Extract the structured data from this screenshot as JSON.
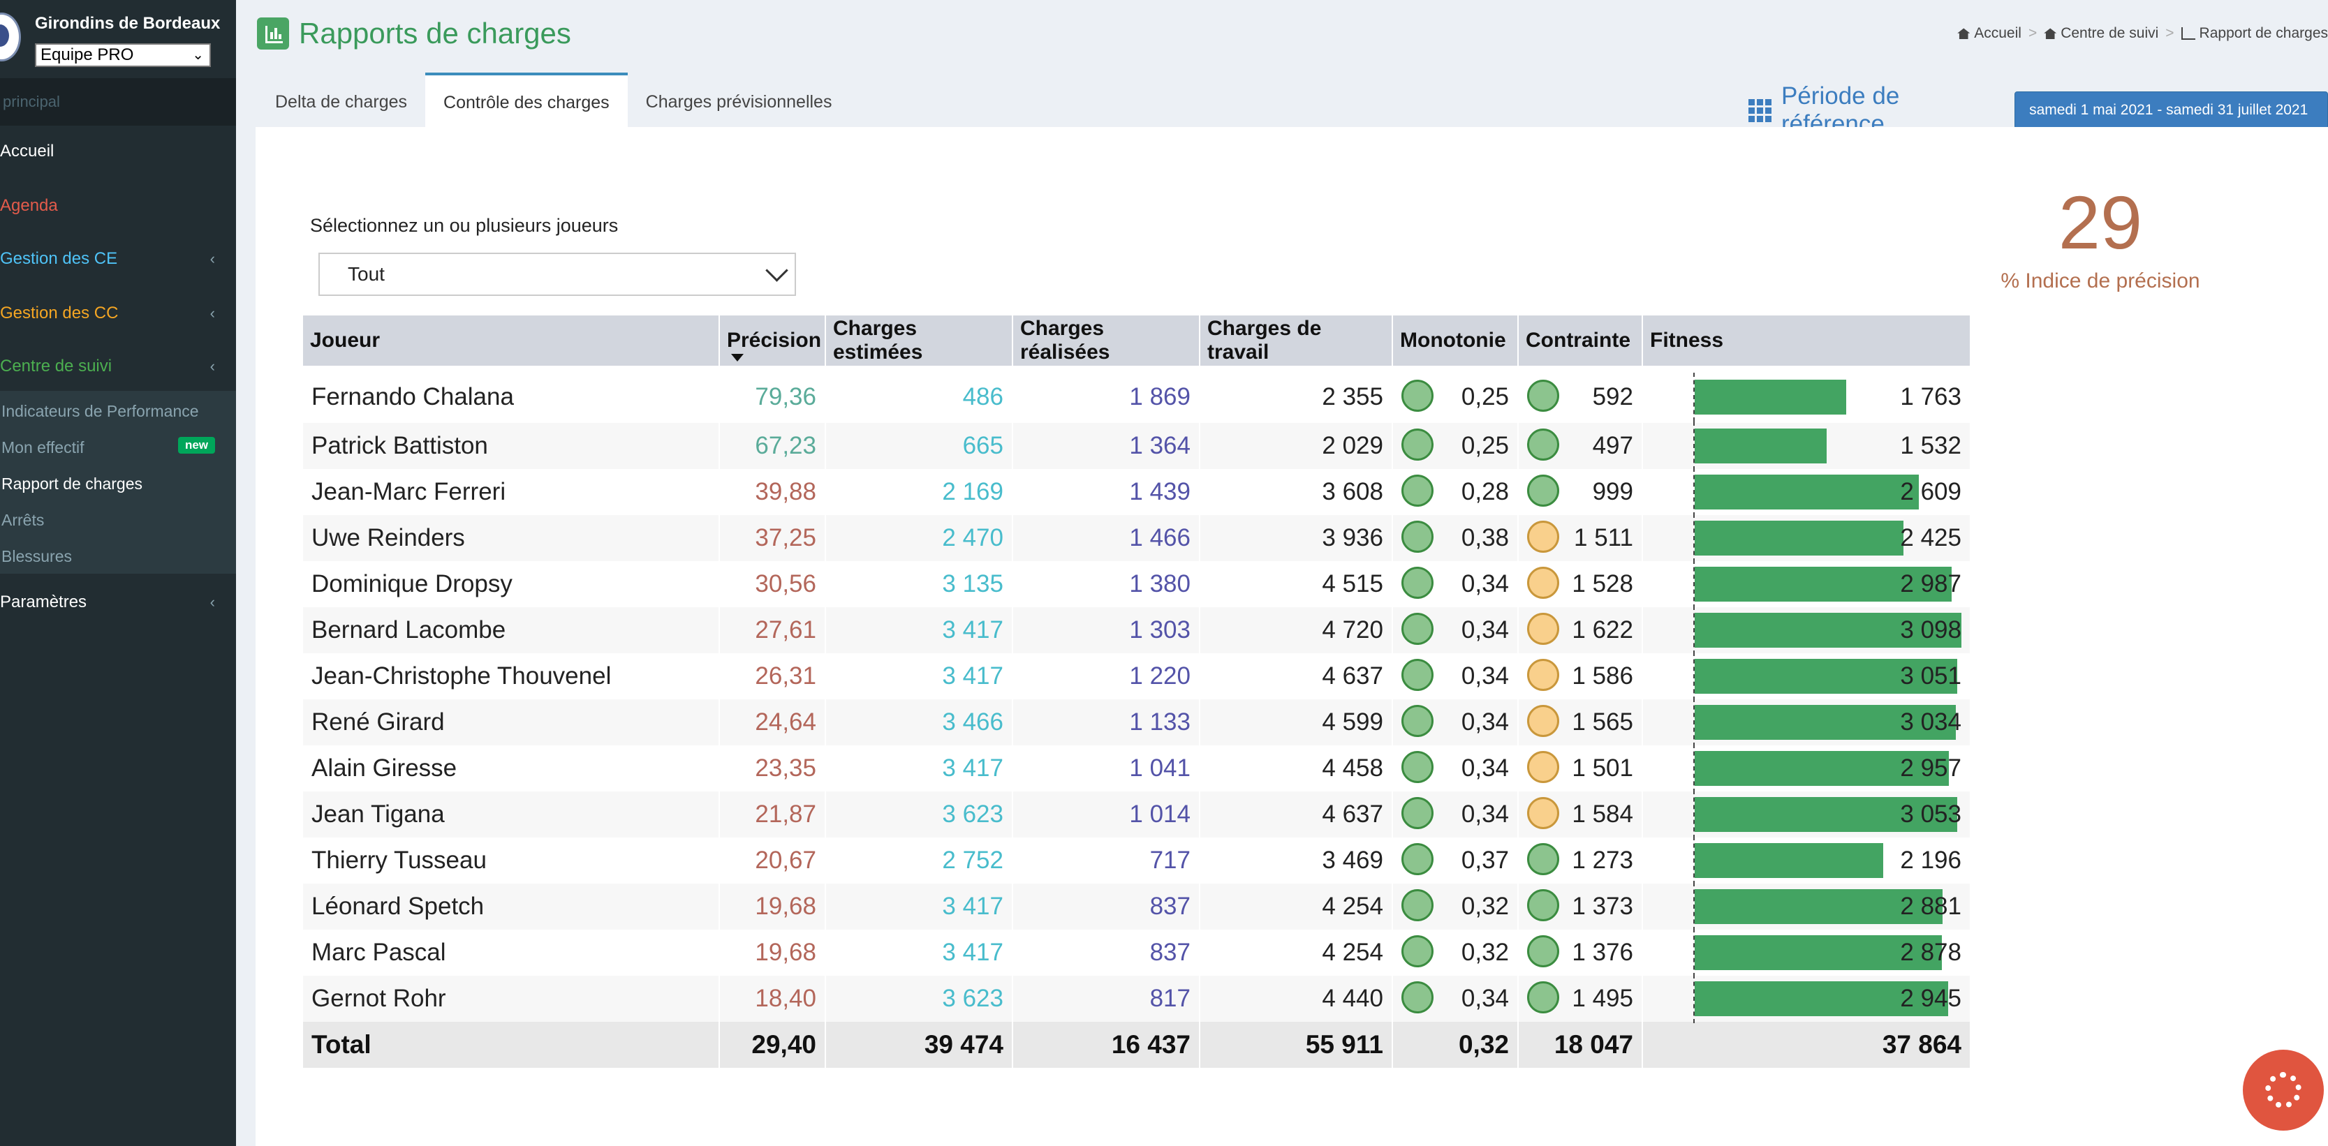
{
  "sidebar": {
    "club_name": "Girondins de Bordeaux",
    "team_selected": "Equipe PRO",
    "section_header": "principal",
    "items": [
      {
        "label": "Accueil",
        "color": "#ffffff"
      },
      {
        "label": "Agenda",
        "color": "#e35b4b"
      },
      {
        "label": "Gestion des CE",
        "color": "#4fc3f7"
      },
      {
        "label": "Gestion des CC",
        "color": "#f5a623"
      },
      {
        "label": "Centre de suivi",
        "color": "#4caf50"
      },
      {
        "label": "Paramètres",
        "color": "#ffffff"
      }
    ],
    "submenu": [
      {
        "label": "Indicateurs de Performance"
      },
      {
        "label": "Mon effectif",
        "badge": "new"
      },
      {
        "label": "Rapport de charges"
      },
      {
        "label": "Arrêts"
      },
      {
        "label": "Blessures"
      }
    ]
  },
  "header": {
    "title": "Rapports de charges",
    "breadcrumb": [
      "Accueil",
      "Centre de suivi",
      "Rapport de charges"
    ]
  },
  "tabs": [
    "Delta de charges",
    "Contrôle des charges",
    "Charges prévisionnelles"
  ],
  "period": {
    "label": "Période de référence",
    "value": "samedi 1 mai 2021 - samedi 31 juillet 2021"
  },
  "filter": {
    "label": "Sélectionnez un ou plusieurs joueurs",
    "value": "Tout"
  },
  "kpi": {
    "value": "29",
    "label": "% Indice de précision"
  },
  "table": {
    "columns": [
      "Joueur",
      "Précision",
      "Charges estimées",
      "Charges réalisées",
      "Charges de travail",
      "Monotonie",
      "Contrainte",
      "Fitness"
    ],
    "rows": [
      {
        "name": "Fernando Chalana",
        "precision": "79,36",
        "estimated": "486",
        "realized": "1 869",
        "workload": "2 355",
        "monotony": "0,25",
        "monotony_status": "green",
        "strain": "592",
        "strain_status": "green",
        "fitness": "1 763",
        "fitness_value": 1763
      },
      {
        "name": "Patrick Battiston",
        "precision": "67,23",
        "estimated": "665",
        "realized": "1 364",
        "workload": "2 029",
        "monotony": "0,25",
        "monotony_status": "green",
        "strain": "497",
        "strain_status": "green",
        "fitness": "1 532",
        "fitness_value": 1532
      },
      {
        "name": "Jean-Marc Ferreri",
        "precision": "39,88",
        "estimated": "2 169",
        "realized": "1 439",
        "workload": "3 608",
        "monotony": "0,28",
        "monotony_status": "green",
        "strain": "999",
        "strain_status": "green",
        "fitness": "2 609",
        "fitness_value": 2609
      },
      {
        "name": "Uwe Reinders",
        "precision": "37,25",
        "estimated": "2 470",
        "realized": "1 466",
        "workload": "3 936",
        "monotony": "0,38",
        "monotony_status": "green",
        "strain": "1 511",
        "strain_status": "orange",
        "fitness": "2 425",
        "fitness_value": 2425
      },
      {
        "name": "Dominique Dropsy",
        "precision": "30,56",
        "estimated": "3 135",
        "realized": "1 380",
        "workload": "4 515",
        "monotony": "0,34",
        "monotony_status": "green",
        "strain": "1 528",
        "strain_status": "orange",
        "fitness": "2 987",
        "fitness_value": 2987
      },
      {
        "name": "Bernard Lacombe",
        "precision": "27,61",
        "estimated": "3 417",
        "realized": "1 303",
        "workload": "4 720",
        "monotony": "0,34",
        "monotony_status": "green",
        "strain": "1 622",
        "strain_status": "orange",
        "fitness": "3 098",
        "fitness_value": 3098
      },
      {
        "name": "Jean-Christophe Thouvenel",
        "precision": "26,31",
        "estimated": "3 417",
        "realized": "1 220",
        "workload": "4 637",
        "monotony": "0,34",
        "monotony_status": "green",
        "strain": "1 586",
        "strain_status": "orange",
        "fitness": "3 051",
        "fitness_value": 3051
      },
      {
        "name": "René Girard",
        "precision": "24,64",
        "estimated": "3 466",
        "realized": "1 133",
        "workload": "4 599",
        "monotony": "0,34",
        "monotony_status": "green",
        "strain": "1 565",
        "strain_status": "orange",
        "fitness": "3 034",
        "fitness_value": 3034
      },
      {
        "name": "Alain Giresse",
        "precision": "23,35",
        "estimated": "3 417",
        "realized": "1 041",
        "workload": "4 458",
        "monotony": "0,34",
        "monotony_status": "green",
        "strain": "1 501",
        "strain_status": "orange",
        "fitness": "2 957",
        "fitness_value": 2957
      },
      {
        "name": "Jean Tigana",
        "precision": "21,87",
        "estimated": "3 623",
        "realized": "1 014",
        "workload": "4 637",
        "monotony": "0,34",
        "monotony_status": "green",
        "strain": "1 584",
        "strain_status": "orange",
        "fitness": "3 053",
        "fitness_value": 3053
      },
      {
        "name": "Thierry Tusseau",
        "precision": "20,67",
        "estimated": "2 752",
        "realized": "717",
        "workload": "3 469",
        "monotony": "0,37",
        "monotony_status": "green",
        "strain": "1 273",
        "strain_status": "green",
        "fitness": "2 196",
        "fitness_value": 2196
      },
      {
        "name": "Léonard Spetch",
        "precision": "19,68",
        "estimated": "3 417",
        "realized": "837",
        "workload": "4 254",
        "monotony": "0,32",
        "monotony_status": "green",
        "strain": "1 373",
        "strain_status": "green",
        "fitness": "2 881",
        "fitness_value": 2881
      },
      {
        "name": "Marc Pascal",
        "precision": "19,68",
        "estimated": "3 417",
        "realized": "837",
        "workload": "4 254",
        "monotony": "0,32",
        "monotony_status": "green",
        "strain": "1 376",
        "strain_status": "green",
        "fitness": "2 878",
        "fitness_value": 2878
      },
      {
        "name": "Gernot Rohr",
        "precision": "18,40",
        "estimated": "3 623",
        "realized": "817",
        "workload": "4 440",
        "monotony": "0,34",
        "monotony_status": "green",
        "strain": "1 495",
        "strain_status": "green",
        "fitness": "2 945",
        "fitness_value": 2945
      }
    ],
    "total": {
      "label": "Total",
      "precision": "29,40",
      "estimated": "39 474",
      "realized": "16 437",
      "workload": "55 911",
      "monotony": "0,32",
      "strain": "18 047",
      "fitness": "37 864"
    }
  },
  "colors": {
    "accent": "#3c7dbf",
    "title_green": "#3a9a5b",
    "fitness_bar": "#43a462",
    "status_green": "#8cc48e",
    "status_orange": "#f9d08c",
    "kpi": "#b36f4f"
  },
  "icons": {
    "title": "bar-chart-icon",
    "breadcrumb_home": "home-icon",
    "period": "grid-icon",
    "help": "lifebuoy-icon"
  }
}
